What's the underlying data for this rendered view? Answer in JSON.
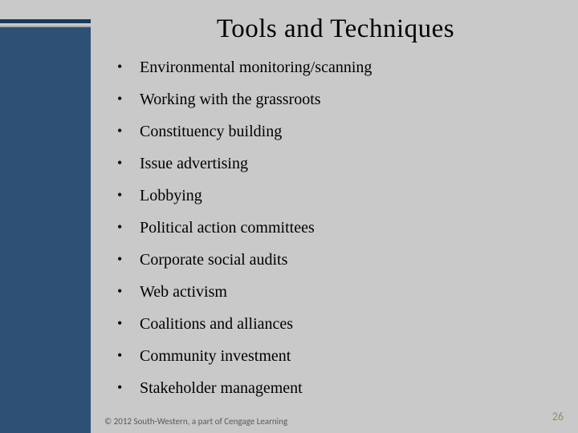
{
  "slide": {
    "title": "Tools and Techniques",
    "bullets": [
      {
        "marker": "•",
        "text": "Environmental monitoring/scanning"
      },
      {
        "marker": "•",
        "text": "Working with the grassroots"
      },
      {
        "marker": "•",
        "text": "Constituency building"
      },
      {
        "marker": "•",
        "text": "Issue advertising"
      },
      {
        "marker": "•",
        "text": "Lobbying"
      },
      {
        "marker": "•",
        "text": "Political action committees"
      },
      {
        "marker": "•",
        "text": "Corporate social audits"
      },
      {
        "marker": "•",
        "text": "Web activism"
      },
      {
        "marker": "•",
        "text": "Coalitions and alliances"
      },
      {
        "marker": "•",
        "text": "Community investment"
      },
      {
        "marker": "•",
        "text": "Stakeholder management"
      }
    ],
    "footer": "© 2012 South-Western, a part of Cengage Learning",
    "page_number": "26"
  },
  "colors": {
    "background": "#c9c9c9",
    "sidebar_top": "#1a3a5c",
    "sidebar_main": "#2e5075",
    "text": "#000000",
    "footer_text": "#5a5a5a",
    "page_number": "#9a8a6a"
  }
}
